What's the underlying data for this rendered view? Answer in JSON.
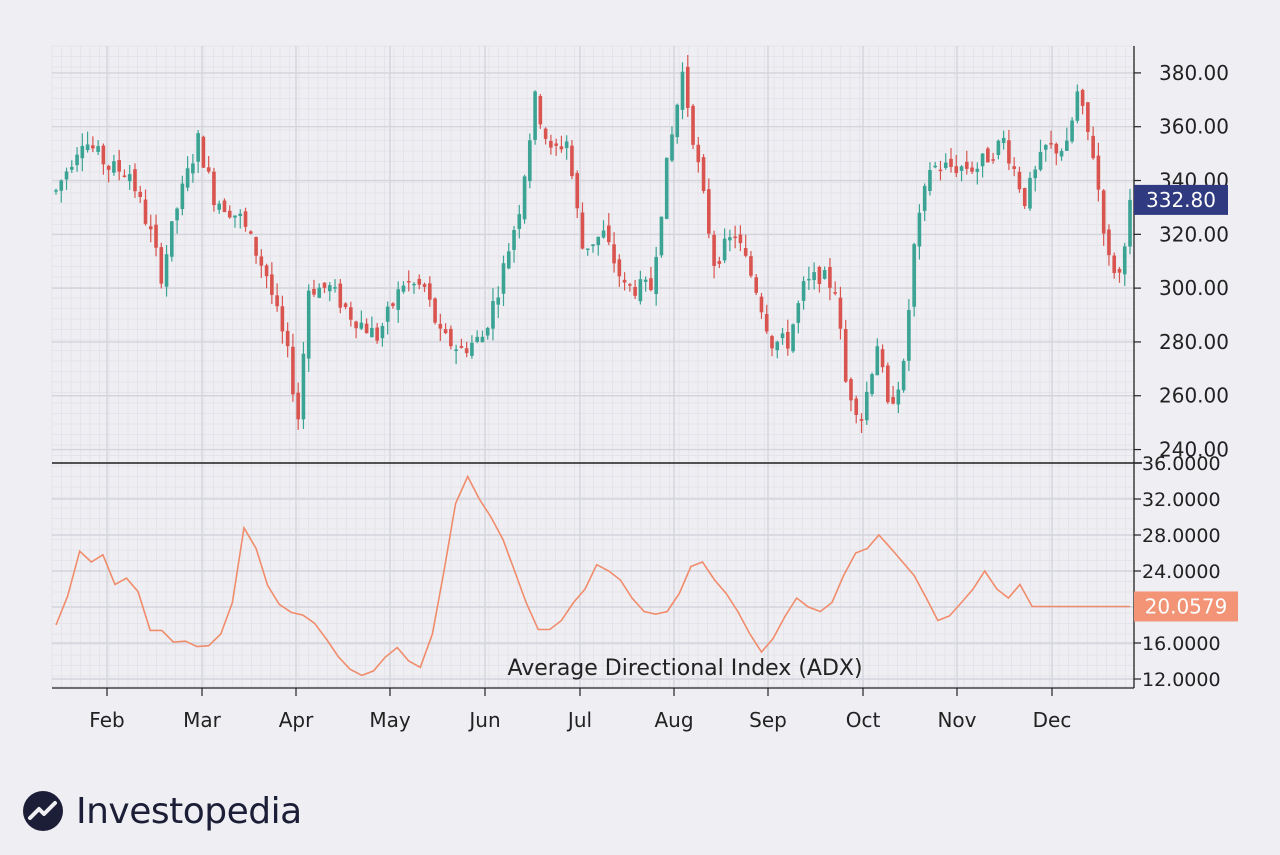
{
  "brand": {
    "name": "Investopedia"
  },
  "colors": {
    "background": "#efeff3",
    "grid_major": "#d4d4dc",
    "grid_minor": "#e4e4ea",
    "up": "#3aa394",
    "down": "#d9534f",
    "adx_line": "#f08c6c",
    "price_badge": "#2f3a80",
    "adx_badge": "#f39476",
    "axis": "#222222",
    "brand_dark": "#1b1e36"
  },
  "chart_data": [
    {
      "type": "candlestick",
      "title": "",
      "xlabel": "",
      "ylabel": "",
      "ylim": [
        235,
        390
      ],
      "y_ticks": [
        "240.00",
        "260.00",
        "280.00",
        "300.00",
        "320.00",
        "340.00",
        "360.00",
        "380.00"
      ],
      "y_tick_values": [
        240,
        260,
        280,
        300,
        320,
        340,
        360,
        380
      ],
      "x_ticks": [
        "Feb",
        "Mar",
        "Apr",
        "May",
        "Jun",
        "Jul",
        "Aug",
        "Sep",
        "Oct",
        "Nov",
        "Dec"
      ],
      "last_value_label": "332.80",
      "last_value": 332.8,
      "grid": true,
      "close_path": [
        [
          0,
          336
        ],
        [
          5,
          356
        ],
        [
          10,
          345
        ],
        [
          14,
          343
        ],
        [
          18,
          320
        ],
        [
          20,
          305
        ],
        [
          23,
          330
        ],
        [
          27,
          355
        ],
        [
          30,
          334
        ],
        [
          35,
          326
        ],
        [
          40,
          305
        ],
        [
          44,
          275
        ],
        [
          46,
          252
        ],
        [
          48,
          300
        ],
        [
          52,
          300
        ],
        [
          56,
          290
        ],
        [
          61,
          282
        ],
        [
          66,
          302
        ],
        [
          70,
          300
        ],
        [
          73,
          282
        ],
        [
          77,
          277
        ],
        [
          81,
          282
        ],
        [
          84,
          300
        ],
        [
          88,
          330
        ],
        [
          91,
          370
        ],
        [
          94,
          350
        ],
        [
          97,
          355
        ],
        [
          100,
          315
        ],
        [
          104,
          320
        ],
        [
          108,
          300
        ],
        [
          113,
          300
        ],
        [
          116,
          345
        ],
        [
          119,
          380
        ],
        [
          122,
          345
        ],
        [
          125,
          310
        ],
        [
          129,
          320
        ],
        [
          133,
          300
        ],
        [
          136,
          280
        ],
        [
          139,
          280
        ],
        [
          142,
          300
        ],
        [
          145,
          305
        ],
        [
          148,
          300
        ],
        [
          150,
          265
        ],
        [
          153,
          252
        ],
        [
          156,
          280
        ],
        [
          158,
          255
        ],
        [
          161,
          270
        ],
        [
          163,
          315
        ],
        [
          166,
          345
        ],
        [
          171,
          345
        ],
        [
          175,
          345
        ],
        [
          180,
          355
        ],
        [
          184,
          333
        ],
        [
          188,
          352
        ],
        [
          192,
          352
        ],
        [
          194,
          372
        ],
        [
          197,
          350
        ],
        [
          200,
          310
        ],
        [
          202,
          305
        ],
        [
          204,
          332.8
        ]
      ]
    },
    {
      "type": "line",
      "title": "Average Directional Index (ADX)",
      "xlabel": "",
      "ylabel": "",
      "ylim": [
        11.0,
        36.0
      ],
      "y_ticks": [
        "12.0000",
        "16.0000",
        "20.0000",
        "24.0000",
        "28.0000",
        "32.0000",
        "36.0000"
      ],
      "y_tick_values": [
        12,
        16,
        20,
        24,
        28,
        32,
        36
      ],
      "x_ticks": [
        "Feb",
        "Mar",
        "Apr",
        "May",
        "Jun",
        "Jul",
        "Aug",
        "Sep",
        "Oct",
        "Nov",
        "Dec"
      ],
      "last_value_label": "20.0579",
      "last_value": 20.06,
      "grid": true,
      "series": [
        {
          "name": "",
          "x": [
            0,
            2.2,
            4.5,
            6.7,
            8.9,
            11.2,
            13.4,
            15.6,
            17.9,
            20.1,
            22.3,
            24.6,
            26.8,
            29.0,
            31.3,
            33.5,
            35.7,
            38.0,
            40.2,
            42.4,
            44.7,
            46.9,
            49.1,
            51.4,
            53.6,
            55.8,
            58.1,
            60.3,
            62.5,
            64.8,
            67.0,
            69.2,
            71.5,
            73.7,
            75.9,
            78.2,
            80.4,
            82.6,
            84.9,
            87.1,
            89.3,
            91.6,
            93.8,
            96.0,
            98.3,
            100.5,
            102.7,
            105.0,
            107.2,
            109.4,
            111.7,
            113.9,
            116.1,
            118.4,
            120.6,
            122.8,
            125.1,
            127.3,
            129.5,
            131.8,
            134.0,
            136.2,
            138.5,
            140.7,
            142.9,
            145.2,
            147.4,
            149.6,
            151.9,
            154.1,
            156.3,
            158.6,
            160.8,
            163.0,
            165.3,
            167.5,
            169.7,
            172.0,
            174.2,
            176.4,
            178.7,
            180.9,
            183.1,
            185.4,
            187.6,
            189.8,
            192.1,
            194.3,
            196.5,
            198.8,
            201.0,
            204.0
          ],
          "values": [
            18.0,
            21.2,
            26.2,
            25.0,
            25.8,
            22.5,
            23.2,
            21.7,
            17.4,
            17.4,
            16.1,
            16.2,
            15.6,
            15.7,
            17.0,
            20.5,
            28.8,
            26.5,
            22.4,
            20.3,
            19.4,
            19.1,
            18.2,
            16.4,
            14.5,
            13.1,
            12.4,
            12.9,
            14.4,
            15.5,
            14.0,
            13.3,
            17.0,
            24.0,
            31.5,
            34.5,
            32.0,
            30.0,
            27.5,
            24.0,
            20.5,
            17.5,
            17.5,
            18.5,
            20.5,
            22.0,
            24.7,
            24.0,
            23.0,
            21.0,
            19.5,
            19.2,
            19.5,
            21.5,
            24.5,
            25.0,
            23.0,
            21.5,
            19.5,
            17.0,
            15.0,
            16.5,
            19.0,
            21.0,
            20.0,
            19.5,
            20.5,
            23.5,
            26.0,
            26.5,
            28.0,
            26.5,
            25.0,
            23.5,
            21.0,
            18.5,
            19.0,
            20.5,
            22.0,
            24.0,
            22.0,
            21.0,
            22.5,
            20.06,
            20.06,
            20.06,
            20.06,
            20.06,
            20.06,
            20.06,
            20.06,
            20.06
          ]
        }
      ]
    }
  ]
}
